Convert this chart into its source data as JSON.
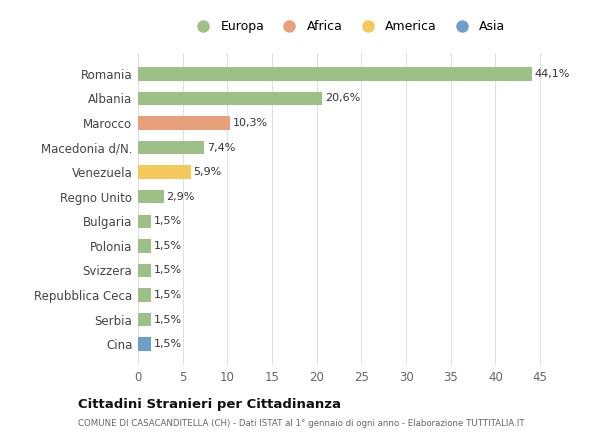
{
  "categories": [
    "Cina",
    "Serbia",
    "Repubblica Ceca",
    "Svizzera",
    "Polonia",
    "Bulgaria",
    "Regno Unito",
    "Venezuela",
    "Macedonia d/N.",
    "Marocco",
    "Albania",
    "Romania"
  ],
  "values": [
    1.5,
    1.5,
    1.5,
    1.5,
    1.5,
    1.5,
    2.9,
    5.9,
    7.4,
    10.3,
    20.6,
    44.1
  ],
  "labels": [
    "1,5%",
    "1,5%",
    "1,5%",
    "1,5%",
    "1,5%",
    "1,5%",
    "2,9%",
    "5,9%",
    "7,4%",
    "10,3%",
    "20,6%",
    "44,1%"
  ],
  "colors": [
    "#6d9ecc",
    "#9dc087",
    "#9dc087",
    "#9dc087",
    "#9dc087",
    "#9dc087",
    "#9dc087",
    "#f5c85c",
    "#9dc087",
    "#e8a07a",
    "#9dc087",
    "#9dc087"
  ],
  "legend_labels": [
    "Europa",
    "Africa",
    "America",
    "Asia"
  ],
  "legend_colors": [
    "#9dc087",
    "#e8a07a",
    "#f5c85c",
    "#6d9ecc"
  ],
  "title": "Cittadini Stranieri per Cittadinanza",
  "subtitle": "COMUNE DI CASACANDITELLA (CH) - Dati ISTAT al 1° gennaio di ogni anno - Elaborazione TUTTITALIA.IT",
  "xlim": [
    0,
    47
  ],
  "xticks": [
    0,
    5,
    10,
    15,
    20,
    25,
    30,
    35,
    40,
    45
  ],
  "bg_color": "#ffffff",
  "grid_color": "#e0e0e0",
  "bar_height": 0.55
}
